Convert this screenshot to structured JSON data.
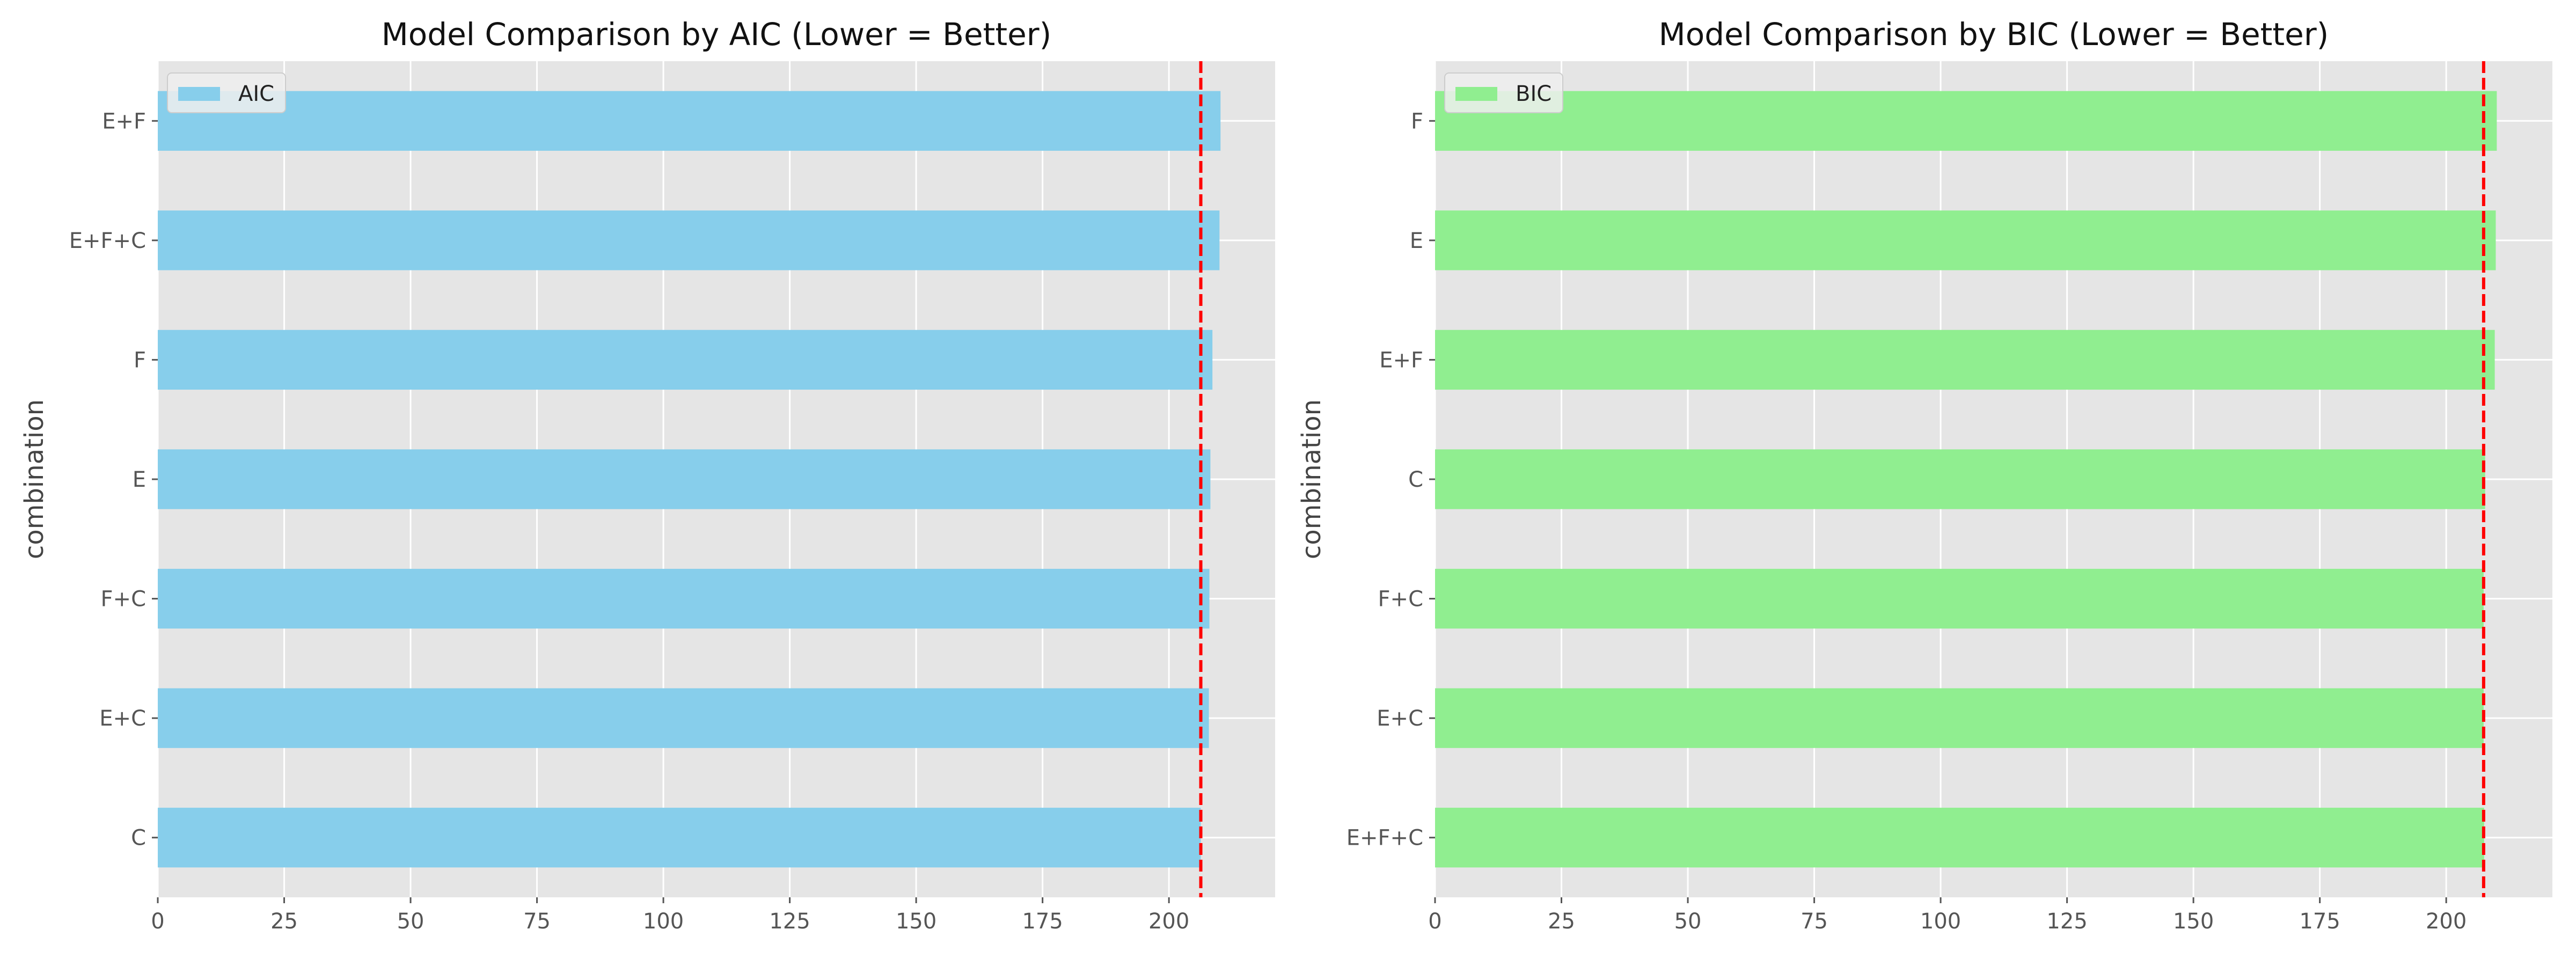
{
  "chart_data": [
    {
      "type": "bar",
      "orientation": "horizontal",
      "title": "Model Comparison by AIC (Lower = Better)",
      "ylabel": "combination",
      "xlabel": "",
      "xlim": [
        0,
        221
      ],
      "xticks": [
        0,
        25,
        50,
        75,
        100,
        125,
        150,
        175,
        200
      ],
      "categories": [
        "C",
        "E+C",
        "F+C",
        "E",
        "F",
        "E+F+C",
        "E+F"
      ],
      "series": [
        {
          "name": "AIC",
          "color": "#87CEEB",
          "values": [
            206.3,
            207.9,
            208.0,
            208.2,
            208.6,
            210.0,
            210.2
          ]
        }
      ],
      "reference_line": {
        "value": 206.3,
        "color": "#ff0000",
        "style": "dashed"
      },
      "legend_position": "top-left",
      "grid": true,
      "background": "#e5e5e5"
    },
    {
      "type": "bar",
      "orientation": "horizontal",
      "title": "Model Comparison by BIC (Lower = Better)",
      "ylabel": "combination",
      "xlabel": "",
      "xlim": [
        0,
        221
      ],
      "xticks": [
        0,
        25,
        50,
        75,
        100,
        125,
        150,
        175,
        200
      ],
      "categories": [
        "E+F+C",
        "E+C",
        "F+C",
        "C",
        "E+F",
        "E",
        "F"
      ],
      "series": [
        {
          "name": "BIC",
          "color": "#90EE90",
          "values": [
            207.5,
            207.4,
            207.4,
            207.7,
            209.6,
            209.8,
            210.0
          ]
        }
      ],
      "reference_line": {
        "value": 207.4,
        "color": "#ff0000",
        "style": "dashed"
      },
      "legend_position": "top-left",
      "grid": true,
      "background": "#e5e5e5"
    }
  ]
}
